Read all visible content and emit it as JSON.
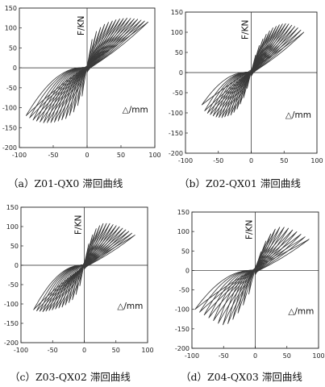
{
  "chart_data": [
    {
      "type": "line",
      "caption": "（a）Z01-QX0 滞回曲线",
      "xlabel": "△/mm",
      "ylabel": "F/KN",
      "xlim": [
        -100,
        100
      ],
      "ylim": [
        -200,
        150
      ],
      "xticks": [
        -100,
        -50,
        0,
        50,
        100
      ],
      "yticks": [
        -200,
        -150,
        -100,
        -50,
        0,
        50,
        100,
        150
      ],
      "grid": false,
      "envelope": {
        "positive": [
          [
            0,
            0
          ],
          [
            3,
            42
          ],
          [
            7,
            70
          ],
          [
            15,
            95
          ],
          [
            28,
            112
          ],
          [
            45,
            122
          ],
          [
            60,
            125
          ],
          [
            75,
            122
          ],
          [
            90,
            115
          ]
        ],
        "negative": [
          [
            0,
            0
          ],
          [
            -3,
            -40
          ],
          [
            -8,
            -75
          ],
          [
            -18,
            -108
          ],
          [
            -32,
            -128
          ],
          [
            -50,
            -137
          ],
          [
            -65,
            -138
          ],
          [
            -80,
            -131
          ],
          [
            -90,
            -120
          ]
        ]
      },
      "approx_cycles": 16
    },
    {
      "type": "line",
      "caption": "（b）Z02-QX01 滞回曲线",
      "xlabel": "△/mm",
      "ylabel": "F/KN",
      "xlim": [
        -100,
        100
      ],
      "ylim": [
        -200,
        150
      ],
      "xticks": [
        -100,
        -50,
        0,
        50,
        100
      ],
      "yticks": [
        -200,
        -150,
        -100,
        -50,
        0,
        50,
        100,
        150
      ],
      "grid": false,
      "envelope": {
        "positive": [
          [
            0,
            0
          ],
          [
            4,
            30
          ],
          [
            10,
            60
          ],
          [
            20,
            90
          ],
          [
            32,
            110
          ],
          [
            45,
            120
          ],
          [
            55,
            122
          ],
          [
            70,
            112
          ],
          [
            80,
            100
          ]
        ],
        "negative": [
          [
            0,
            0
          ],
          [
            -4,
            -28
          ],
          [
            -10,
            -58
          ],
          [
            -20,
            -88
          ],
          [
            -30,
            -105
          ],
          [
            -45,
            -112
          ],
          [
            -55,
            -110
          ],
          [
            -70,
            -98
          ],
          [
            -75,
            -80
          ]
        ]
      },
      "approx_cycles": 16
    },
    {
      "type": "line",
      "caption": "（c）Z03-QX02 滞回曲线",
      "xlabel": "△/mm",
      "ylabel": "F/KN",
      "xlim": [
        -100,
        100
      ],
      "ylim": [
        -200,
        150
      ],
      "xticks": [
        -100,
        -50,
        0,
        50,
        100
      ],
      "yticks": [
        -200,
        -150,
        -100,
        -50,
        0,
        50,
        100,
        150
      ],
      "grid": false,
      "envelope": {
        "positive": [
          [
            0,
            0
          ],
          [
            4,
            40
          ],
          [
            10,
            70
          ],
          [
            20,
            98
          ],
          [
            30,
            108
          ],
          [
            40,
            108
          ],
          [
            55,
            100
          ],
          [
            70,
            88
          ],
          [
            80,
            78
          ]
        ],
        "negative": [
          [
            0,
            0
          ],
          [
            -4,
            -38
          ],
          [
            -10,
            -68
          ],
          [
            -20,
            -92
          ],
          [
            -35,
            -108
          ],
          [
            -50,
            -115
          ],
          [
            -65,
            -120
          ],
          [
            -75,
            -118
          ],
          [
            -80,
            -115
          ]
        ]
      },
      "approx_cycles": 15
    },
    {
      "type": "line",
      "caption": "（d）Z04-QX03 滞回曲线",
      "xlabel": "△/mm",
      "ylabel": "F/KN",
      "xlim": [
        -100,
        100
      ],
      "ylim": [
        -200,
        150
      ],
      "xticks": [
        -100,
        -50,
        0,
        50,
        100
      ],
      "yticks": [
        -200,
        -150,
        -100,
        -50,
        0,
        50,
        100,
        150
      ],
      "grid": false,
      "envelope": {
        "positive": [
          [
            0,
            0
          ],
          [
            5,
            30
          ],
          [
            12,
            60
          ],
          [
            20,
            85
          ],
          [
            30,
            105
          ],
          [
            40,
            112
          ],
          [
            50,
            110
          ],
          [
            65,
            100
          ],
          [
            85,
            80
          ]
        ],
        "negative": [
          [
            0,
            0
          ],
          [
            -5,
            -35
          ],
          [
            -12,
            -70
          ],
          [
            -25,
            -105
          ],
          [
            -40,
            -135
          ],
          [
            -50,
            -140
          ],
          [
            -60,
            -135
          ],
          [
            -75,
            -120
          ],
          [
            -95,
            -100
          ]
        ]
      },
      "approx_cycles": 12
    }
  ]
}
